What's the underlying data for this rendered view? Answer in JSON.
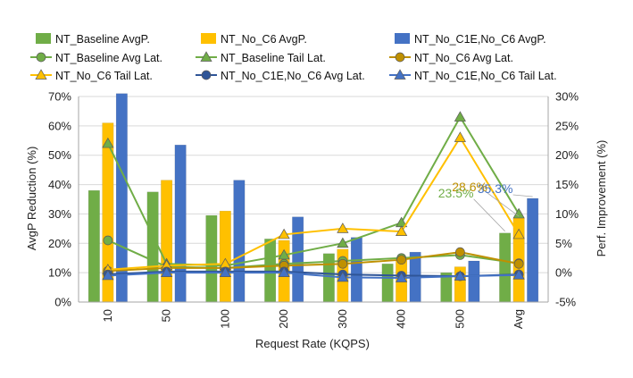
{
  "chart_data": {
    "type": "bar",
    "categories": [
      "10",
      "50",
      "100",
      "200",
      "300",
      "400",
      "500",
      "Avg"
    ],
    "xlabel": "Request Rate (KQPS)",
    "ylabel": "AvgP Reduction (%)",
    "y2label": "Perf. Improvement  (%)",
    "ylim": [
      0,
      70
    ],
    "yticks": [
      0,
      10,
      20,
      30,
      40,
      50,
      60,
      70
    ],
    "ytick_labels": [
      "0%",
      "10%",
      "20%",
      "30%",
      "40%",
      "50%",
      "60%",
      "70%"
    ],
    "y2lim": [
      -5,
      30
    ],
    "y2ticks": [
      -5,
      0,
      5,
      10,
      15,
      20,
      25,
      30
    ],
    "y2tick_labels": [
      "-5%",
      "0%",
      "5%",
      "10%",
      "15%",
      "20%",
      "25%",
      "30%"
    ],
    "grid": true,
    "legend_position": "top",
    "bar_series": [
      {
        "name": "NT_Baseline AvgP.",
        "color": "#70ad47",
        "values": [
          38,
          37.5,
          29.5,
          21.5,
          16.5,
          13,
          10,
          23.5
        ]
      },
      {
        "name": "NT_No_C6 AvgP.",
        "color": "#ffc000",
        "values": [
          61,
          41.5,
          31,
          21,
          18,
          14.5,
          12,
          28.6
        ]
      },
      {
        "name": "NT_No_C1E,No_C6 AvgP.",
        "color": "#4472c4",
        "values": [
          71,
          53.5,
          41.5,
          29,
          22,
          17,
          14,
          35.3
        ]
      }
    ],
    "line_series": [
      {
        "name": "NT_Baseline Avg Lat.",
        "color": "#70ad47",
        "marker": "circle",
        "values": [
          5.5,
          1,
          0.8,
          1.5,
          2,
          2.5,
          3,
          1.6
        ]
      },
      {
        "name": "NT_Baseline Tail Lat.",
        "color": "#70ad47",
        "marker": "triangle",
        "values": [
          22,
          1.5,
          1.2,
          3,
          5,
          8.5,
          26.5,
          10
        ]
      },
      {
        "name": "NT_No_C6 Avg Lat.",
        "color": "#bf9000",
        "marker": "circle",
        "values": [
          0.3,
          0.8,
          0.8,
          1.2,
          1.5,
          2.2,
          3.5,
          1.5
        ]
      },
      {
        "name": "NT_No_C6 Tail Lat.",
        "color": "#ffc000",
        "marker": "triangle",
        "values": [
          0.5,
          1.2,
          1.5,
          6.5,
          7.5,
          7,
          23,
          6.5
        ]
      },
      {
        "name": "NT_No_C1E,No_C6 Avg Lat.",
        "color": "#2f5597",
        "marker": "circle",
        "values": [
          -0.3,
          0.2,
          0.2,
          0.2,
          -0.3,
          -0.5,
          -0.6,
          -0.3
        ]
      },
      {
        "name": "NT_No_C1E,No_C6 Tail Lat.",
        "color": "#4472c4",
        "marker": "triangle",
        "values": [
          -0.5,
          0,
          0,
          0,
          -0.8,
          -0.9,
          -0.6,
          -0.4
        ]
      }
    ],
    "annotations": [
      {
        "text": "35.3%",
        "color": "#4472c4",
        "category": "Avg",
        "series": "NT_No_C1E,No_C6 AvgP."
      },
      {
        "text": "28.6%",
        "color": "#bf9000",
        "category": "Avg",
        "series": "NT_No_C6 AvgP."
      },
      {
        "text": "23.5%",
        "color": "#70ad47",
        "category": "Avg",
        "series": "NT_Baseline AvgP."
      }
    ]
  }
}
